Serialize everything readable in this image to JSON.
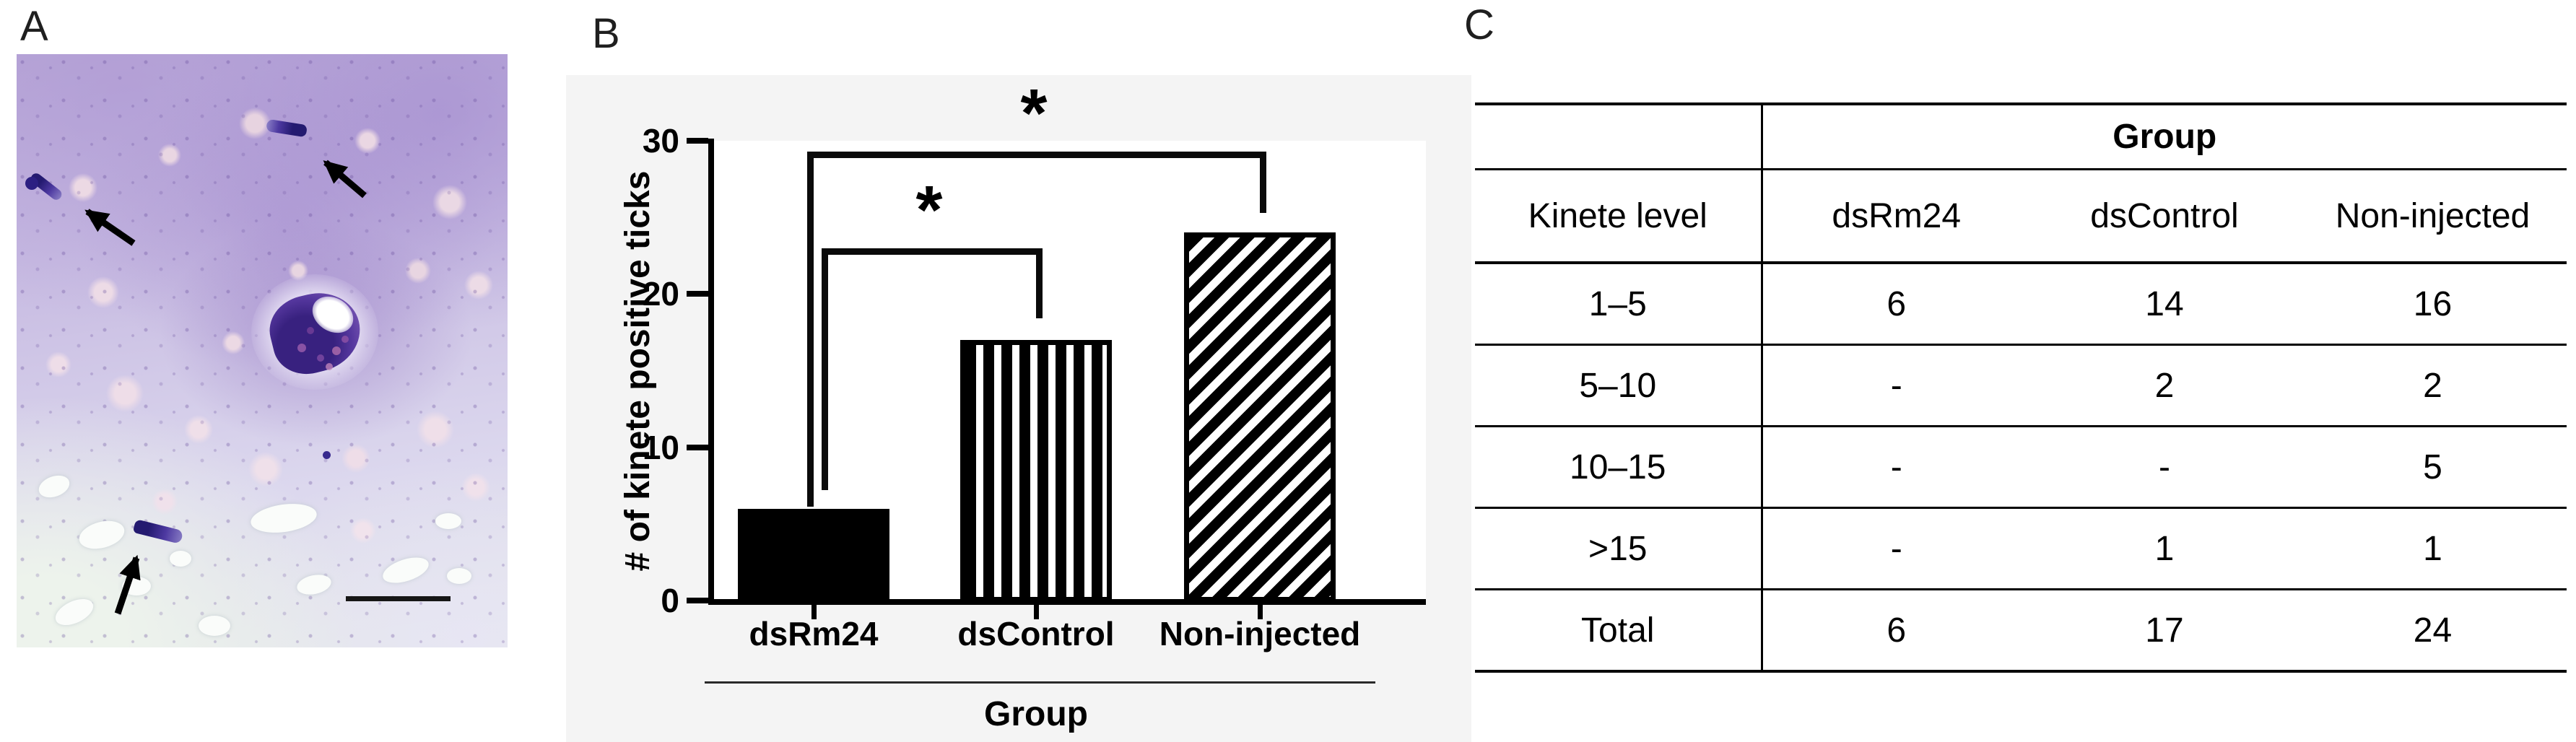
{
  "panels": {
    "a": {
      "label": "A"
    },
    "b": {
      "label": "B"
    },
    "c": {
      "label": "C"
    }
  },
  "micrograph": {
    "arrow_icon": "arrow-icon",
    "arrow_count": 3,
    "scale_bar_icon": "scale-bar"
  },
  "chart_data": [
    {
      "type": "bar",
      "title": "",
      "categories": [
        "dsRm24",
        "dsControl",
        "Non-injected"
      ],
      "values": [
        6,
        17,
        24
      ],
      "xlabel": "Group",
      "ylabel": "# of kinete positive ticks",
      "ylim": [
        0,
        30
      ],
      "yticks": [
        0,
        10,
        20,
        30
      ],
      "grid": false,
      "legend": false,
      "bar_color": "#000000",
      "bar_fill_patterns": [
        "solid",
        "vertical-stripes",
        "diagonal-stripes"
      ],
      "panel_background": "#f4f4f4",
      "plot_background": "#ffffff",
      "significance_brackets": [
        {
          "from": "dsRm24",
          "to": "dsControl",
          "label": "*",
          "height": 23,
          "left_drop_to": 7.2,
          "right_drop_to": 18.4
        },
        {
          "from": "dsRm24",
          "to": "Non-injected",
          "label": "*",
          "height": 29.3,
          "left_drop_to": 6.1,
          "right_drop_to": 25.3
        }
      ]
    },
    {
      "type": "table",
      "group_header": "Group",
      "columns": [
        "Kinete level",
        "dsRm24",
        "dsControl",
        "Non-injected"
      ],
      "rows": [
        [
          "1–5",
          "6",
          "14",
          "16"
        ],
        [
          "5–10",
          "-",
          "2",
          "2"
        ],
        [
          "10–15",
          "-",
          "-",
          "5"
        ],
        [
          ">15",
          "-",
          "1",
          "1"
        ],
        [
          "Total",
          "6",
          "17",
          "24"
        ]
      ]
    }
  ]
}
